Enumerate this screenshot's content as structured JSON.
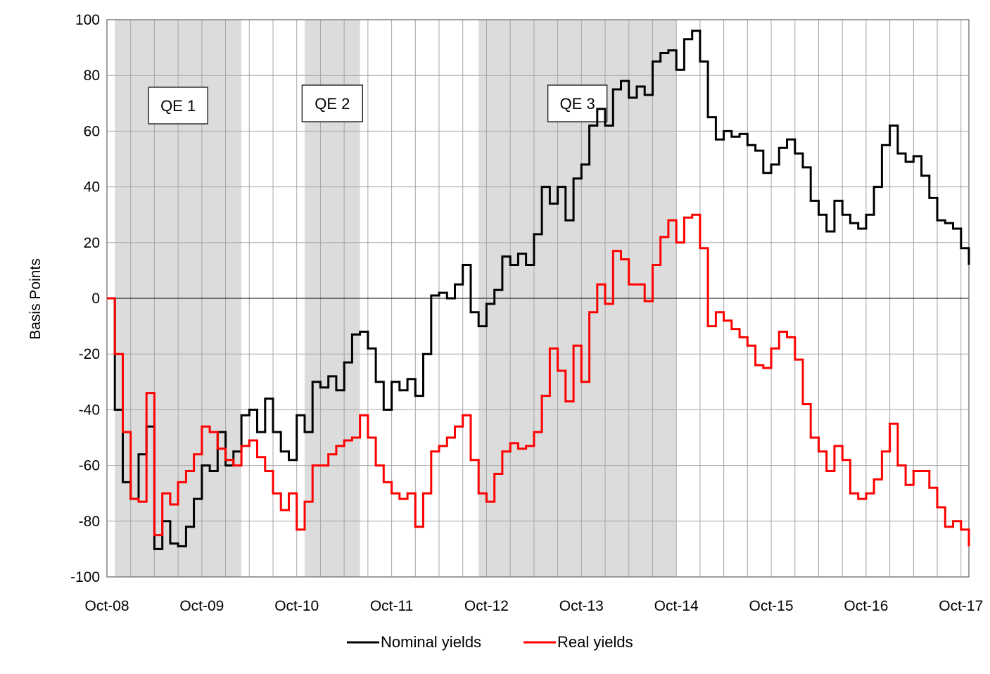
{
  "chart_data": {
    "type": "line",
    "ylabel": "Basis Points",
    "ylim": [
      -100,
      100
    ],
    "yticks": [
      -100,
      -80,
      -60,
      -40,
      -20,
      0,
      20,
      40,
      60,
      80,
      100
    ],
    "xticks": [
      "Oct-08",
      "Oct-09",
      "Oct-10",
      "Oct-11",
      "Oct-12",
      "Oct-13",
      "Oct-14",
      "Oct-15",
      "Oct-16",
      "Oct-17"
    ],
    "xlim": [
      "2008-10",
      "2017-11"
    ],
    "grid": true,
    "legend": "bottom",
    "shaded_periods": [
      {
        "label": "QE 1",
        "start": "2008-11",
        "end": "2010-03"
      },
      {
        "label": "QE 2",
        "start": "2010-11",
        "end": "2011-06"
      },
      {
        "label": "QE 3",
        "start": "2012-09",
        "end": "2014-10"
      }
    ],
    "series": [
      {
        "name": "Nominal yields",
        "color": "#000000",
        "points": [
          [
            "2008-10",
            0
          ],
          [
            "2008-11",
            -40
          ],
          [
            "2008-12",
            -66
          ],
          [
            "2009-01",
            -72
          ],
          [
            "2009-02",
            -56
          ],
          [
            "2009-03",
            -46
          ],
          [
            "2009-04",
            -90
          ],
          [
            "2009-05",
            -80
          ],
          [
            "2009-06",
            -88
          ],
          [
            "2009-07",
            -89
          ],
          [
            "2009-08",
            -82
          ],
          [
            "2009-09",
            -72
          ],
          [
            "2009-10",
            -60
          ],
          [
            "2009-11",
            -62
          ],
          [
            "2009-12",
            -48
          ],
          [
            "2010-01",
            -60
          ],
          [
            "2010-02",
            -55
          ],
          [
            "2010-03",
            -42
          ],
          [
            "2010-04",
            -40
          ],
          [
            "2010-05",
            -48
          ],
          [
            "2010-06",
            -36
          ],
          [
            "2010-07",
            -48
          ],
          [
            "2010-08",
            -55
          ],
          [
            "2010-09",
            -58
          ],
          [
            "2010-10",
            -42
          ],
          [
            "2010-11",
            -48
          ],
          [
            "2010-12",
            -30
          ],
          [
            "2011-01",
            -32
          ],
          [
            "2011-02",
            -28
          ],
          [
            "2011-03",
            -33
          ],
          [
            "2011-04",
            -23
          ],
          [
            "2011-05",
            -13
          ],
          [
            "2011-06",
            -12
          ],
          [
            "2011-07",
            -18
          ],
          [
            "2011-08",
            -30
          ],
          [
            "2011-09",
            -40
          ],
          [
            "2011-10",
            -30
          ],
          [
            "2011-11",
            -33
          ],
          [
            "2011-12",
            -29
          ],
          [
            "2012-01",
            -35
          ],
          [
            "2012-02",
            -20
          ],
          [
            "2012-03",
            1
          ],
          [
            "2012-04",
            2
          ],
          [
            "2012-05",
            0
          ],
          [
            "2012-06",
            5
          ],
          [
            "2012-07",
            12
          ],
          [
            "2012-08",
            -5
          ],
          [
            "2012-09",
            -10
          ],
          [
            "2012-10",
            -2
          ],
          [
            "2012-11",
            3
          ],
          [
            "2012-12",
            15
          ],
          [
            "2013-01",
            12
          ],
          [
            "2013-02",
            16
          ],
          [
            "2013-03",
            12
          ],
          [
            "2013-04",
            23
          ],
          [
            "2013-05",
            40
          ],
          [
            "2013-06",
            34
          ],
          [
            "2013-07",
            40
          ],
          [
            "2013-08",
            28
          ],
          [
            "2013-09",
            43
          ],
          [
            "2013-10",
            48
          ],
          [
            "2013-11",
            62
          ],
          [
            "2013-12",
            68
          ],
          [
            "2014-01",
            62
          ],
          [
            "2014-02",
            75
          ],
          [
            "2014-03",
            78
          ],
          [
            "2014-04",
            72
          ],
          [
            "2014-05",
            76
          ],
          [
            "2014-06",
            73
          ],
          [
            "2014-07",
            85
          ],
          [
            "2014-08",
            88
          ],
          [
            "2014-09",
            89
          ],
          [
            "2014-10",
            82
          ],
          [
            "2014-11",
            93
          ],
          [
            "2014-12",
            96
          ],
          [
            "2015-01",
            85
          ],
          [
            "2015-02",
            65
          ],
          [
            "2015-03",
            57
          ],
          [
            "2015-04",
            60
          ],
          [
            "2015-05",
            58
          ],
          [
            "2015-06",
            59
          ],
          [
            "2015-07",
            55
          ],
          [
            "2015-08",
            53
          ],
          [
            "2015-09",
            45
          ],
          [
            "2015-10",
            48
          ],
          [
            "2015-11",
            54
          ],
          [
            "2015-12",
            57
          ],
          [
            "2016-01",
            52
          ],
          [
            "2016-02",
            47
          ],
          [
            "2016-03",
            35
          ],
          [
            "2016-04",
            30
          ],
          [
            "2016-05",
            24
          ],
          [
            "2016-06",
            35
          ],
          [
            "2016-07",
            30
          ],
          [
            "2016-08",
            27
          ],
          [
            "2016-09",
            25
          ],
          [
            "2016-10",
            30
          ],
          [
            "2016-11",
            40
          ],
          [
            "2016-12",
            55
          ],
          [
            "2017-01",
            62
          ],
          [
            "2017-02",
            52
          ],
          [
            "2017-03",
            49
          ],
          [
            "2017-04",
            51
          ],
          [
            "2017-05",
            44
          ],
          [
            "2017-06",
            36
          ],
          [
            "2017-07",
            28
          ],
          [
            "2017-08",
            27
          ],
          [
            "2017-09",
            25
          ],
          [
            "2017-10",
            18
          ],
          [
            "2017-11",
            12
          ]
        ]
      },
      {
        "name": "Real yields",
        "color": "#ff0000",
        "points": [
          [
            "2008-10",
            0
          ],
          [
            "2008-11",
            -20
          ],
          [
            "2008-12",
            -48
          ],
          [
            "2009-01",
            -72
          ],
          [
            "2009-02",
            -73
          ],
          [
            "2009-03",
            -34
          ],
          [
            "2009-04",
            -85
          ],
          [
            "2009-05",
            -70
          ],
          [
            "2009-06",
            -74
          ],
          [
            "2009-07",
            -66
          ],
          [
            "2009-08",
            -62
          ],
          [
            "2009-09",
            -56
          ],
          [
            "2009-10",
            -46
          ],
          [
            "2009-11",
            -48
          ],
          [
            "2009-12",
            -54
          ],
          [
            "2010-01",
            -58
          ],
          [
            "2010-02",
            -60
          ],
          [
            "2010-03",
            -53
          ],
          [
            "2010-04",
            -51
          ],
          [
            "2010-05",
            -57
          ],
          [
            "2010-06",
            -62
          ],
          [
            "2010-07",
            -70
          ],
          [
            "2010-08",
            -76
          ],
          [
            "2010-09",
            -70
          ],
          [
            "2010-10",
            -83
          ],
          [
            "2010-11",
            -73
          ],
          [
            "2010-12",
            -60
          ],
          [
            "2011-01",
            -60
          ],
          [
            "2011-02",
            -56
          ],
          [
            "2011-03",
            -53
          ],
          [
            "2011-04",
            -51
          ],
          [
            "2011-05",
            -50
          ],
          [
            "2011-06",
            -42
          ],
          [
            "2011-07",
            -50
          ],
          [
            "2011-08",
            -60
          ],
          [
            "2011-09",
            -66
          ],
          [
            "2011-10",
            -70
          ],
          [
            "2011-11",
            -72
          ],
          [
            "2011-12",
            -70
          ],
          [
            "2012-01",
            -82
          ],
          [
            "2012-02",
            -70
          ],
          [
            "2012-03",
            -55
          ],
          [
            "2012-04",
            -53
          ],
          [
            "2012-05",
            -50
          ],
          [
            "2012-06",
            -46
          ],
          [
            "2012-07",
            -42
          ],
          [
            "2012-08",
            -58
          ],
          [
            "2012-09",
            -70
          ],
          [
            "2012-10",
            -73
          ],
          [
            "2012-11",
            -63
          ],
          [
            "2012-12",
            -55
          ],
          [
            "2013-01",
            -52
          ],
          [
            "2013-02",
            -54
          ],
          [
            "2013-03",
            -53
          ],
          [
            "2013-04",
            -48
          ],
          [
            "2013-05",
            -35
          ],
          [
            "2013-06",
            -18
          ],
          [
            "2013-07",
            -26
          ],
          [
            "2013-08",
            -37
          ],
          [
            "2013-09",
            -17
          ],
          [
            "2013-10",
            -30
          ],
          [
            "2013-11",
            -5
          ],
          [
            "2013-12",
            5
          ],
          [
            "2014-01",
            -2
          ],
          [
            "2014-02",
            17
          ],
          [
            "2014-03",
            14
          ],
          [
            "2014-04",
            5
          ],
          [
            "2014-05",
            5
          ],
          [
            "2014-06",
            -1
          ],
          [
            "2014-07",
            12
          ],
          [
            "2014-08",
            22
          ],
          [
            "2014-09",
            28
          ],
          [
            "2014-10",
            20
          ],
          [
            "2014-11",
            29
          ],
          [
            "2014-12",
            30
          ],
          [
            "2015-01",
            18
          ],
          [
            "2015-02",
            -10
          ],
          [
            "2015-03",
            -5
          ],
          [
            "2015-04",
            -8
          ],
          [
            "2015-05",
            -11
          ],
          [
            "2015-06",
            -14
          ],
          [
            "2015-07",
            -17
          ],
          [
            "2015-08",
            -24
          ],
          [
            "2015-09",
            -25
          ],
          [
            "2015-10",
            -18
          ],
          [
            "2015-11",
            -12
          ],
          [
            "2015-12",
            -14
          ],
          [
            "2016-01",
            -22
          ],
          [
            "2016-02",
            -38
          ],
          [
            "2016-03",
            -50
          ],
          [
            "2016-04",
            -55
          ],
          [
            "2016-05",
            -62
          ],
          [
            "2016-06",
            -53
          ],
          [
            "2016-07",
            -58
          ],
          [
            "2016-08",
            -70
          ],
          [
            "2016-09",
            -72
          ],
          [
            "2016-10",
            -70
          ],
          [
            "2016-11",
            -65
          ],
          [
            "2016-12",
            -55
          ],
          [
            "2017-01",
            -45
          ],
          [
            "2017-02",
            -60
          ],
          [
            "2017-03",
            -67
          ],
          [
            "2017-04",
            -62
          ],
          [
            "2017-05",
            -62
          ],
          [
            "2017-06",
            -68
          ],
          [
            "2017-07",
            -75
          ],
          [
            "2017-08",
            -82
          ],
          [
            "2017-09",
            -80
          ],
          [
            "2017-10",
            -83
          ],
          [
            "2017-11",
            -89
          ]
        ]
      }
    ]
  }
}
